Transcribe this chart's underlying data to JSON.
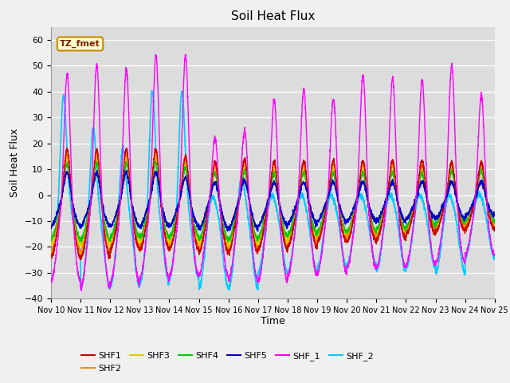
{
  "title": "Soil Heat Flux",
  "ylabel": "Soil Heat Flux",
  "xlabel": "Time",
  "xlim_days": [
    0,
    15
  ],
  "ylim": [
    -40,
    65
  ],
  "yticks": [
    -40,
    -30,
    -20,
    -10,
    0,
    10,
    20,
    30,
    40,
    50,
    60
  ],
  "xtick_labels": [
    "Nov 10",
    "Nov 11",
    "Nov 12",
    "Nov 13",
    "Nov 14",
    "Nov 15",
    "Nov 16",
    "Nov 17",
    "Nov 18",
    "Nov 19",
    "Nov 20",
    "Nov 21",
    "Nov 22",
    "Nov 23",
    "Nov 24",
    "Nov 25"
  ],
  "xtick_positions": [
    0,
    1,
    2,
    3,
    4,
    5,
    6,
    7,
    8,
    9,
    10,
    11,
    12,
    13,
    14,
    15
  ],
  "annotation_text": "TZ_fmet",
  "background_color": "#dcdcdc",
  "fig_facecolor": "#f0f0f0",
  "series": {
    "SHF1": {
      "color": "#cc0000",
      "lw": 1.0
    },
    "SHF2": {
      "color": "#ff8800",
      "lw": 1.0
    },
    "SHF3": {
      "color": "#ddcc00",
      "lw": 1.0
    },
    "SHF4": {
      "color": "#00cc00",
      "lw": 1.0
    },
    "SHF5": {
      "color": "#0000cc",
      "lw": 1.0
    },
    "SHF_1": {
      "color": "#ff00ff",
      "lw": 1.0
    },
    "SHF_2": {
      "color": "#00ccff",
      "lw": 1.2
    }
  },
  "shf1_pos_peaks": [
    20,
    20,
    20,
    20,
    17,
    15,
    16,
    15,
    15,
    15,
    15,
    15,
    15,
    14,
    14
  ],
  "shf1_neg_peaks": [
    -24,
    -24,
    -21,
    -21,
    -21,
    -22,
    -22,
    -21,
    -20,
    -18,
    -18,
    -17,
    -15,
    -14,
    -13
  ],
  "shf2_pos_peaks": [
    18,
    18,
    18,
    18,
    16,
    14,
    15,
    14,
    14,
    14,
    14,
    13,
    13,
    13,
    13
  ],
  "shf2_neg_peaks": [
    -22,
    -22,
    -20,
    -20,
    -20,
    -21,
    -21,
    -20,
    -19,
    -17,
    -16,
    -16,
    -14,
    -13,
    -12
  ],
  "shf3_pos_peaks": [
    16,
    16,
    16,
    16,
    14,
    12,
    13,
    12,
    12,
    12,
    12,
    11,
    11,
    11,
    11
  ],
  "shf3_neg_peaks": [
    -19,
    -19,
    -18,
    -18,
    -18,
    -19,
    -19,
    -18,
    -17,
    -16,
    -15,
    -14,
    -13,
    -12,
    -11
  ],
  "shf4_pos_peaks": [
    14,
    14,
    14,
    14,
    12,
    10,
    11,
    10,
    10,
    10,
    10,
    10,
    10,
    10,
    10
  ],
  "shf4_neg_peaks": [
    -17,
    -17,
    -16,
    -16,
    -16,
    -17,
    -17,
    -16,
    -15,
    -14,
    -14,
    -13,
    -12,
    -11,
    -10
  ],
  "shf5_pos_peaks": [
    10,
    10,
    10,
    10,
    8,
    6,
    7,
    6,
    6,
    6,
    6,
    6,
    6,
    6,
    6
  ],
  "shf5_neg_peaks": [
    -12,
    -12,
    -12,
    -12,
    -12,
    -13,
    -13,
    -12,
    -11,
    -10,
    -10,
    -10,
    -9,
    -9,
    -8
  ],
  "shf1_pos_peaks2": [
    50,
    54,
    52,
    57,
    57,
    25,
    28,
    40,
    44,
    40,
    49,
    48,
    47,
    53,
    41
  ],
  "shf1_neg_peaks2": [
    -33,
    -36,
    -34,
    -32,
    -31,
    -31,
    -33,
    -33,
    -31,
    -30,
    -28,
    -28,
    -27,
    -26,
    -23
  ],
  "shf2_pos_peaks2": [
    41,
    30,
    22,
    44,
    44,
    3,
    11,
    3,
    3,
    3,
    3,
    3,
    3,
    3,
    3
  ],
  "shf2_neg_peaks2": [
    -22,
    -36,
    -35,
    -34,
    -32,
    -36,
    -36,
    -30,
    -30,
    -28,
    -27,
    -29,
    -28,
    -30,
    -24
  ]
}
